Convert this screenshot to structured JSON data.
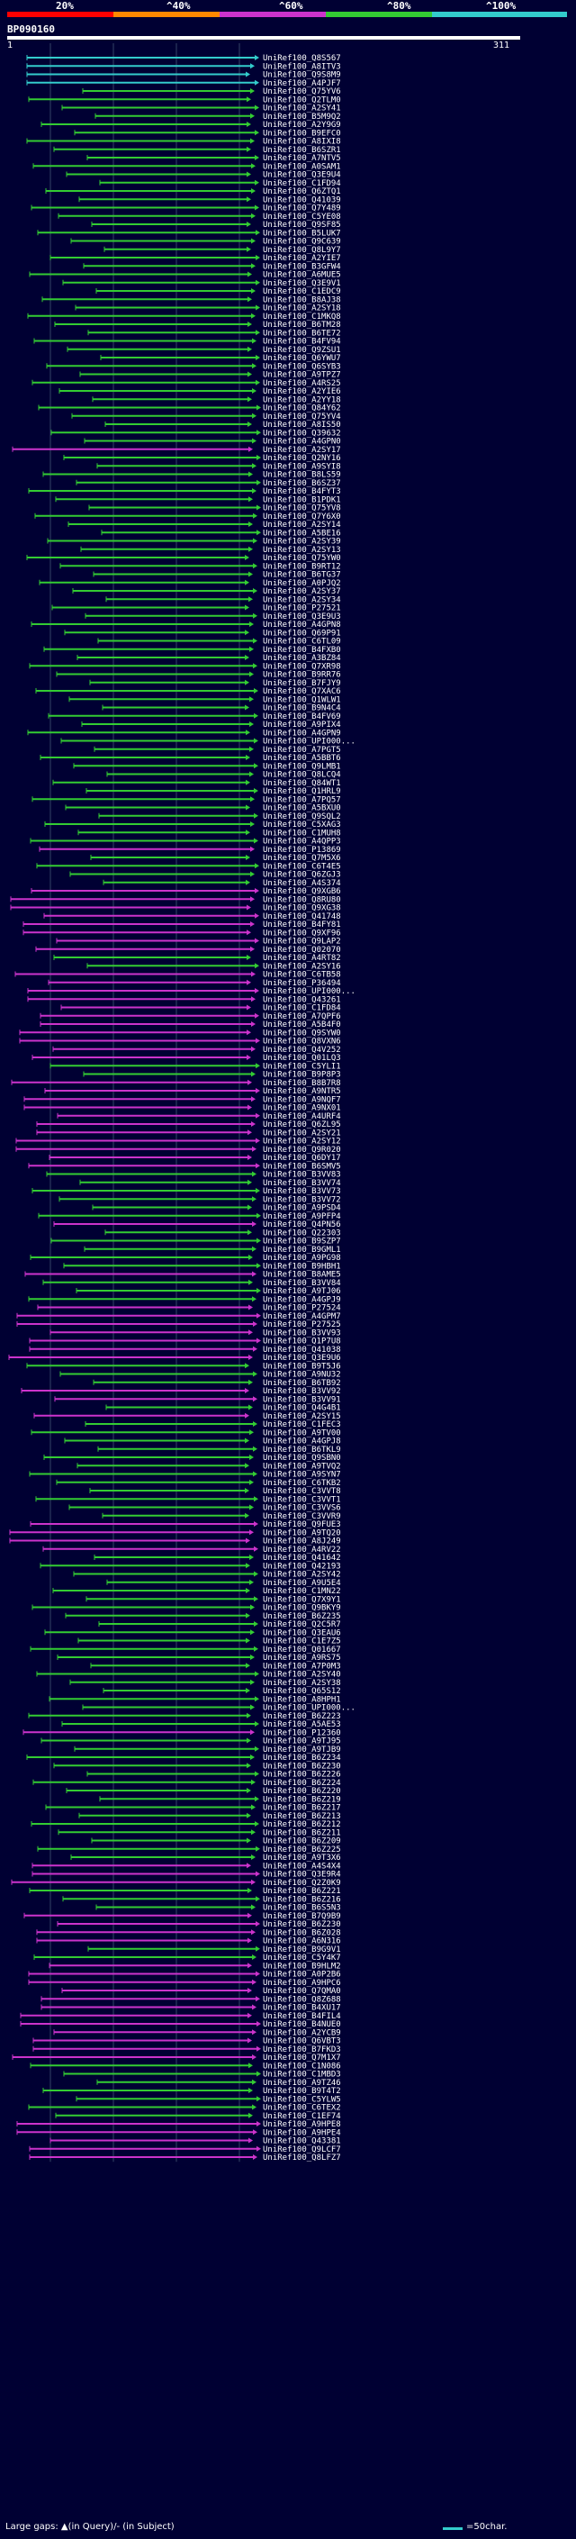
{
  "scale": {
    "labels": [
      "20%",
      "^40%",
      "^60%",
      "^80%",
      "^100%"
    ],
    "colors": [
      "#ff0000",
      "#ff8800",
      "#cc33cc",
      "#33cc33",
      "#33cccc"
    ]
  },
  "query": {
    "id": "BP090160",
    "start": "1",
    "end": "311"
  },
  "colors": {
    "cyan": "#33cccc",
    "green": "#33cc33",
    "magenta": "#cc33cc",
    "background": "#000033",
    "grid": "#334466"
  },
  "legend": {
    "gaps_text": "Large gaps: ▲(in Query)/- (in Subject)",
    "scale_text": "=50char."
  },
  "hits": [
    {
      "label": "UniRef100_Q8S567",
      "color": "cyan"
    },
    {
      "label": "UniRef100_A8ITV3",
      "color": "cyan"
    },
    {
      "label": "UniRef100_Q9S8M9",
      "color": "cyan"
    },
    {
      "label": "UniRef100_A4PJF7",
      "color": "cyan"
    },
    {
      "label": "UniRef100_Q75YV6",
      "color": "green"
    },
    {
      "label": "UniRef100_Q2TLM0",
      "color": "green"
    },
    {
      "label": "UniRef100_A2SY41",
      "color": "green"
    },
    {
      "label": "UniRef100_B5M9Q2",
      "color": "green"
    },
    {
      "label": "UniRef100_A2Y9G9",
      "color": "green"
    },
    {
      "label": "UniRef100_B9EFC0",
      "color": "green"
    },
    {
      "label": "UniRef100_A8IXI8",
      "color": "green"
    },
    {
      "label": "UniRef100_B6SZR1",
      "color": "green"
    },
    {
      "label": "UniRef100_A7NTV5",
      "color": "green"
    },
    {
      "label": "UniRef100_A0SAM1",
      "color": "green"
    },
    {
      "label": "UniRef100_Q3E9U4",
      "color": "green"
    },
    {
      "label": "UniRef100_C1FD94",
      "color": "green"
    },
    {
      "label": "UniRef100_Q6ZTQ1",
      "color": "green"
    },
    {
      "label": "UniRef100_Q41039",
      "color": "green"
    },
    {
      "label": "UniRef100_Q7Y489",
      "color": "green"
    },
    {
      "label": "UniRef100_C5YE08",
      "color": "green"
    },
    {
      "label": "UniRef100_Q9SF85",
      "color": "green"
    },
    {
      "label": "UniRef100_B5LUK7",
      "color": "green"
    },
    {
      "label": "UniRef100_Q9C639",
      "color": "green"
    },
    {
      "label": "UniRef100_Q8L9Y7",
      "color": "green"
    },
    {
      "label": "UniRef100_A2YIE7",
      "color": "green"
    },
    {
      "label": "UniRef100_B3GFW4",
      "color": "green"
    },
    {
      "label": "UniRef100_A6MUE5",
      "color": "green"
    },
    {
      "label": "UniRef100_Q3E9V1",
      "color": "green"
    },
    {
      "label": "UniRef100_C1EDC9",
      "color": "green"
    },
    {
      "label": "UniRef100_B8AJ38",
      "color": "green"
    },
    {
      "label": "UniRef100_A2SY18",
      "color": "green"
    },
    {
      "label": "UniRef100_C1MKQ8",
      "color": "green"
    },
    {
      "label": "UniRef100_B6TM28",
      "color": "green"
    },
    {
      "label": "UniRef100_B6TE72",
      "color": "green"
    },
    {
      "label": "UniRef100_B4FV94",
      "color": "green"
    },
    {
      "label": "UniRef100_Q9ZSU1",
      "color": "green"
    },
    {
      "label": "UniRef100_Q6YWU7",
      "color": "green"
    },
    {
      "label": "UniRef100_Q6SYB3",
      "color": "green"
    },
    {
      "label": "UniRef100_A9TPZ7",
      "color": "green"
    },
    {
      "label": "UniRef100_A4RS25",
      "color": "green"
    },
    {
      "label": "UniRef100_A2YIE6",
      "color": "green"
    },
    {
      "label": "UniRef100_A2YY18",
      "color": "green"
    },
    {
      "label": "UniRef100_Q84Y62",
      "color": "green"
    },
    {
      "label": "UniRef100_Q75YV4",
      "color": "green"
    },
    {
      "label": "UniRef100_A8IS50",
      "color": "green"
    },
    {
      "label": "UniRef100_Q39632",
      "color": "green"
    },
    {
      "label": "UniRef100_A4GPN0",
      "color": "green"
    },
    {
      "label": "UniRef100_A2SY17",
      "color": "magenta"
    },
    {
      "label": "UniRef100_Q2NY16",
      "color": "green"
    },
    {
      "label": "UniRef100_A9SYI8",
      "color": "green"
    },
    {
      "label": "UniRef100_B8LS59",
      "color": "green"
    },
    {
      "label": "UniRef100_B6SZ37",
      "color": "green"
    },
    {
      "label": "UniRef100_B4FYT3",
      "color": "green"
    },
    {
      "label": "UniRef100_B1PDK1",
      "color": "green"
    },
    {
      "label": "UniRef100_Q75YV8",
      "color": "green"
    },
    {
      "label": "UniRef100_Q7Y6X0",
      "color": "green"
    },
    {
      "label": "UniRef100_A2SY14",
      "color": "green"
    },
    {
      "label": "UniRef100_A5BE16",
      "color": "green"
    },
    {
      "label": "UniRef100_A2SY39",
      "color": "green"
    },
    {
      "label": "UniRef100_A2SY13",
      "color": "green"
    },
    {
      "label": "UniRef100_Q75YW0",
      "color": "green"
    },
    {
      "label": "UniRef100_B9RT12",
      "color": "green"
    },
    {
      "label": "UniRef100_B6TG37",
      "color": "green"
    },
    {
      "label": "UniRef100_A0PJQ2",
      "color": "green"
    },
    {
      "label": "UniRef100_A2SY37",
      "color": "green"
    },
    {
      "label": "UniRef100_A2SY34",
      "color": "green"
    },
    {
      "label": "UniRef100_P27521",
      "color": "green"
    },
    {
      "label": "UniRef100_Q3E9U3",
      "color": "green"
    },
    {
      "label": "UniRef100_A4GPN8",
      "color": "green"
    },
    {
      "label": "UniRef100_Q69P91",
      "color": "green"
    },
    {
      "label": "UniRef100_C6TL09",
      "color": "green"
    },
    {
      "label": "UniRef100_B4FXB0",
      "color": "green"
    },
    {
      "label": "UniRef100_A3BZ84",
      "color": "green"
    },
    {
      "label": "UniRef100_Q7XR98",
      "color": "green"
    },
    {
      "label": "UniRef100_B9RR76",
      "color": "green"
    },
    {
      "label": "UniRef100_B7FJY9",
      "color": "green"
    },
    {
      "label": "UniRef100_Q7XAC6",
      "color": "green"
    },
    {
      "label": "UniRef100_Q1WLW1",
      "color": "green"
    },
    {
      "label": "UniRef100_B9N4C4",
      "color": "green"
    },
    {
      "label": "UniRef100_B4FV69",
      "color": "green"
    },
    {
      "label": "UniRef100_A9PIX4",
      "color": "green"
    },
    {
      "label": "UniRef100_A4GPN9",
      "color": "green"
    },
    {
      "label": "UniRef100_UPI000...",
      "color": "green"
    },
    {
      "label": "UniRef100_A7PGT5",
      "color": "green"
    },
    {
      "label": "UniRef100_A5BBT6",
      "color": "green"
    },
    {
      "label": "UniRef100_Q9LMB1",
      "color": "green"
    },
    {
      "label": "UniRef100_Q8LCQ4",
      "color": "green"
    },
    {
      "label": "UniRef100_Q84WT1",
      "color": "green"
    },
    {
      "label": "UniRef100_Q1HRL9",
      "color": "green"
    },
    {
      "label": "UniRef100_A7PQ57",
      "color": "green"
    },
    {
      "label": "UniRef100_A5BXU0",
      "color": "green"
    },
    {
      "label": "UniRef100_Q9SQL2",
      "color": "green"
    },
    {
      "label": "UniRef100_C5XAG3",
      "color": "green"
    },
    {
      "label": "UniRef100_C1MUH8",
      "color": "green"
    },
    {
      "label": "UniRef100_A4QPP3",
      "color": "green"
    },
    {
      "label": "UniRef100_P13869",
      "color": "magenta"
    },
    {
      "label": "UniRef100_Q7M5X6",
      "color": "green"
    },
    {
      "label": "UniRef100_C6T4E5",
      "color": "green"
    },
    {
      "label": "UniRef100_Q6ZGJ3",
      "color": "green"
    },
    {
      "label": "UniRef100_A4S374",
      "color": "green"
    },
    {
      "label": "UniRef100_Q9XGB6",
      "color": "magenta"
    },
    {
      "label": "UniRef100_Q8RU80",
      "color": "magenta"
    },
    {
      "label": "UniRef100_Q9XG38",
      "color": "magenta"
    },
    {
      "label": "UniRef100_Q41748",
      "color": "magenta"
    },
    {
      "label": "UniRef100_B4FY81",
      "color": "magenta"
    },
    {
      "label": "UniRef100_Q9XF96",
      "color": "magenta"
    },
    {
      "label": "UniRef100_Q9LAP2",
      "color": "magenta"
    },
    {
      "label": "UniRef100_Q02070",
      "color": "magenta"
    },
    {
      "label": "UniRef100_A4RT82",
      "color": "green"
    },
    {
      "label": "UniRef100_A2SY16",
      "color": "green"
    },
    {
      "label": "UniRef100_C6TB58",
      "color": "magenta"
    },
    {
      "label": "UniRef100_P36494",
      "color": "magenta"
    },
    {
      "label": "UniRef100_UPI000...",
      "color": "magenta"
    },
    {
      "label": "UniRef100_Q43261",
      "color": "magenta"
    },
    {
      "label": "UniRef100_C1FD84",
      "color": "magenta"
    },
    {
      "label": "UniRef100_A7QPF6",
      "color": "magenta"
    },
    {
      "label": "UniRef100_A5B4F0",
      "color": "magenta"
    },
    {
      "label": "UniRef100_Q9SYW0",
      "color": "magenta"
    },
    {
      "label": "UniRef100_Q8VXN6",
      "color": "magenta"
    },
    {
      "label": "UniRef100_Q4V252",
      "color": "magenta"
    },
    {
      "label": "UniRef100_Q01LQ3",
      "color": "magenta"
    },
    {
      "label": "UniRef100_C5YLI1",
      "color": "green"
    },
    {
      "label": "UniRef100_B9P8P3",
      "color": "green"
    },
    {
      "label": "UniRef100_B8B7R8",
      "color": "magenta"
    },
    {
      "label": "UniRef100_A9NTR5",
      "color": "magenta"
    },
    {
      "label": "UniRef100_A9NQF7",
      "color": "magenta"
    },
    {
      "label": "UniRef100_A9NX01",
      "color": "magenta"
    },
    {
      "label": "UniRef100_A4URF4",
      "color": "magenta"
    },
    {
      "label": "UniRef100_Q6ZL95",
      "color": "magenta"
    },
    {
      "label": "UniRef100_A2SY21",
      "color": "magenta"
    },
    {
      "label": "UniRef100_A2SY12",
      "color": "magenta"
    },
    {
      "label": "UniRef100_Q9R020",
      "color": "magenta"
    },
    {
      "label": "UniRef100_Q6DY17",
      "color": "magenta"
    },
    {
      "label": "UniRef100_B6SMV5",
      "color": "magenta"
    },
    {
      "label": "UniRef100_B3VV83",
      "color": "green"
    },
    {
      "label": "UniRef100_B3VV74",
      "color": "green"
    },
    {
      "label": "UniRef100_B3VV73",
      "color": "green"
    },
    {
      "label": "UniRef100_B3VV72",
      "color": "green"
    },
    {
      "label": "UniRef100_A9PSD4",
      "color": "green"
    },
    {
      "label": "UniRef100_A9PFP4",
      "color": "green"
    },
    {
      "label": "UniRef100_Q4PN56",
      "color": "magenta"
    },
    {
      "label": "UniRef100_Q22303",
      "color": "green"
    },
    {
      "label": "UniRef100_B9SZP7",
      "color": "green"
    },
    {
      "label": "UniRef100_B9GML1",
      "color": "green"
    },
    {
      "label": "UniRef100_A9PG98",
      "color": "green"
    },
    {
      "label": "UniRef100_B9HBH1",
      "color": "green"
    },
    {
      "label": "UniRef100_B8AME5",
      "color": "magenta"
    },
    {
      "label": "UniRef100_B3VV84",
      "color": "green"
    },
    {
      "label": "UniRef100_A9TJ06",
      "color": "green"
    },
    {
      "label": "UniRef100_A4GPJ9",
      "color": "green"
    },
    {
      "label": "UniRef100_P27524",
      "color": "magenta"
    },
    {
      "label": "UniRef100_A4GPM7",
      "color": "magenta"
    },
    {
      "label": "UniRef100_P27525",
      "color": "magenta"
    },
    {
      "label": "UniRef100_B3VV93",
      "color": "magenta"
    },
    {
      "label": "UniRef100_Q1P7U8",
      "color": "magenta"
    },
    {
      "label": "UniRef100_Q41038",
      "color": "magenta"
    },
    {
      "label": "UniRef100_Q3E9U6",
      "color": "magenta"
    },
    {
      "label": "UniRef100_B9T5J6",
      "color": "green"
    },
    {
      "label": "UniRef100_A9NU32",
      "color": "green"
    },
    {
      "label": "UniRef100_B6TB92",
      "color": "green"
    },
    {
      "label": "UniRef100_B3VV92",
      "color": "magenta"
    },
    {
      "label": "UniRef100_B3VV91",
      "color": "magenta"
    },
    {
      "label": "UniRef100_Q4G4B1",
      "color": "green"
    },
    {
      "label": "UniRef100_A2SY15",
      "color": "magenta"
    },
    {
      "label": "UniRef100_C1FEC3",
      "color": "green"
    },
    {
      "label": "UniRef100_A9TV00",
      "color": "green"
    },
    {
      "label": "UniRef100_A4GPJ8",
      "color": "green"
    },
    {
      "label": "UniRef100_B6TKL9",
      "color": "green"
    },
    {
      "label": "UniRef100_Q9SBN0",
      "color": "green"
    },
    {
      "label": "UniRef100_A9TVQ2",
      "color": "green"
    },
    {
      "label": "UniRef100_A9SYN7",
      "color": "green"
    },
    {
      "label": "UniRef100_C6TKB2",
      "color": "green"
    },
    {
      "label": "UniRef100_C3VVT8",
      "color": "green"
    },
    {
      "label": "UniRef100_C3VVT1",
      "color": "green"
    },
    {
      "label": "UniRef100_C3VVS6",
      "color": "green"
    },
    {
      "label": "UniRef100_C3VVR9",
      "color": "green"
    },
    {
      "label": "UniRef100_Q9FUE3",
      "color": "magenta"
    },
    {
      "label": "UniRef100_A9TQ20",
      "color": "magenta"
    },
    {
      "label": "UniRef100_A8J249",
      "color": "magenta"
    },
    {
      "label": "UniRef100_A4RV22",
      "color": "magenta"
    },
    {
      "label": "UniRef100_Q41642",
      "color": "green"
    },
    {
      "label": "UniRef100_Q42193",
      "color": "green"
    },
    {
      "label": "UniRef100_A2SY42",
      "color": "green"
    },
    {
      "label": "UniRef100_A9U5E4",
      "color": "green"
    },
    {
      "label": "UniRef100_C1MN22",
      "color": "green"
    },
    {
      "label": "UniRef100_Q7X9Y1",
      "color": "green"
    },
    {
      "label": "UniRef100_Q9BKY9",
      "color": "green"
    },
    {
      "label": "UniRef100_B6Z235",
      "color": "green"
    },
    {
      "label": "UniRef100_Q2C5R7",
      "color": "green"
    },
    {
      "label": "UniRef100_Q3EAU6",
      "color": "green"
    },
    {
      "label": "UniRef100_C1E7Z5",
      "color": "green"
    },
    {
      "label": "UniRef100_Q01667",
      "color": "green"
    },
    {
      "label": "UniRef100_A9RS75",
      "color": "green"
    },
    {
      "label": "UniRef100_A7P0M3",
      "color": "green"
    },
    {
      "label": "UniRef100_A2SY40",
      "color": "green"
    },
    {
      "label": "UniRef100_A2SY38",
      "color": "green"
    },
    {
      "label": "UniRef100_Q65S12",
      "color": "green"
    },
    {
      "label": "UniRef100_A8HPH1",
      "color": "green"
    },
    {
      "label": "UniRef100_UPI000...",
      "color": "green"
    },
    {
      "label": "UniRef100_B6Z223",
      "color": "green"
    },
    {
      "label": "UniRef100_A5AE53",
      "color": "green"
    },
    {
      "label": "UniRef100_P12360",
      "color": "magenta"
    },
    {
      "label": "UniRef100_A9TJ95",
      "color": "green"
    },
    {
      "label": "UniRef100_A9TJB9",
      "color": "green"
    },
    {
      "label": "UniRef100_B6Z234",
      "color": "green"
    },
    {
      "label": "UniRef100_B6Z230",
      "color": "green"
    },
    {
      "label": "UniRef100_B6Z226",
      "color": "green"
    },
    {
      "label": "UniRef100_B6Z224",
      "color": "green"
    },
    {
      "label": "UniRef100_B6Z220",
      "color": "green"
    },
    {
      "label": "UniRef100_B6Z219",
      "color": "green"
    },
    {
      "label": "UniRef100_B6Z217",
      "color": "green"
    },
    {
      "label": "UniRef100_B6Z213",
      "color": "green"
    },
    {
      "label": "UniRef100_B6Z212",
      "color": "green"
    },
    {
      "label": "UniRef100_B6Z211",
      "color": "green"
    },
    {
      "label": "UniRef100_B6Z209",
      "color": "green"
    },
    {
      "label": "UniRef100_B6Z225",
      "color": "green"
    },
    {
      "label": "UniRef100_A9T3X6",
      "color": "green"
    },
    {
      "label": "UniRef100_A4S4X4",
      "color": "magenta"
    },
    {
      "label": "UniRef100_Q3E9R4",
      "color": "magenta"
    },
    {
      "label": "UniRef100_Q2Z0K9",
      "color": "magenta"
    },
    {
      "label": "UniRef100_B6Z221",
      "color": "green"
    },
    {
      "label": "UniRef100_B6Z216",
      "color": "green"
    },
    {
      "label": "UniRef100_B6S5N3",
      "color": "green"
    },
    {
      "label": "UniRef100_B7Q9B9",
      "color": "magenta"
    },
    {
      "label": "UniRef100_B6Z230",
      "color": "magenta"
    },
    {
      "label": "UniRef100_B6Z028",
      "color": "magenta"
    },
    {
      "label": "UniRef100_A6N316",
      "color": "magenta"
    },
    {
      "label": "UniRef100_B9G9V1",
      "color": "green"
    },
    {
      "label": "UniRef100_C5Y4K7",
      "color": "green"
    },
    {
      "label": "UniRef100_B9HLM2",
      "color": "magenta"
    },
    {
      "label": "UniRef100_A0P2B6",
      "color": "magenta"
    },
    {
      "label": "UniRef100_A9HPC6",
      "color": "magenta"
    },
    {
      "label": "UniRef100_Q7QMA0",
      "color": "magenta"
    },
    {
      "label": "UniRef100_Q8Z688",
      "color": "magenta"
    },
    {
      "label": "UniRef100_B4XU17",
      "color": "magenta"
    },
    {
      "label": "UniRef100_B4FIL4",
      "color": "magenta"
    },
    {
      "label": "UniRef100_B4NUE0",
      "color": "magenta"
    },
    {
      "label": "UniRef100_A2YCB9",
      "color": "magenta"
    },
    {
      "label": "UniRef100_Q6VBT3",
      "color": "magenta"
    },
    {
      "label": "UniRef100_B7FKD3",
      "color": "magenta"
    },
    {
      "label": "UniRef100_Q7M1X7",
      "color": "magenta"
    },
    {
      "label": "UniRef100_C1N086",
      "color": "green"
    },
    {
      "label": "UniRef100_C1MBD3",
      "color": "green"
    },
    {
      "label": "UniRef100_A9TZ46",
      "color": "green"
    },
    {
      "label": "UniRef100_B9T4T2",
      "color": "green"
    },
    {
      "label": "UniRef100_C5YLW5",
      "color": "green"
    },
    {
      "label": "UniRef100_C6TEX2",
      "color": "green"
    },
    {
      "label": "UniRef100_C1EF74",
      "color": "green"
    },
    {
      "label": "UniRef100_A9HPE8",
      "color": "magenta"
    },
    {
      "label": "UniRef100_A9HPE4",
      "color": "magenta"
    },
    {
      "label": "UniRef100_Q43381",
      "color": "magenta"
    },
    {
      "label": "UniRef100_Q9LCF7",
      "color": "magenta"
    },
    {
      "label": "UniRef100_Q8LFZ7",
      "color": "magenta"
    }
  ]
}
